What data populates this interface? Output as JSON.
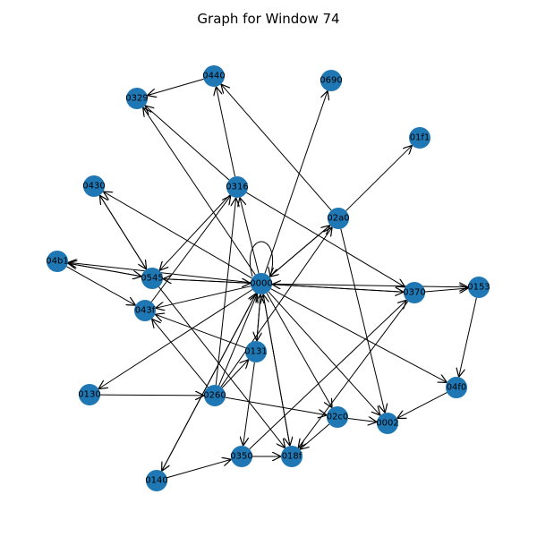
{
  "title": "Graph for Window 74",
  "style": {
    "node_color": "#1f77b4",
    "edge_color": "#000000",
    "label_color": "#000000"
  },
  "graph": {
    "directed": true,
    "nodes": [
      "0000",
      "0440",
      "0690",
      "0329",
      "01f1",
      "0430",
      "0316",
      "02a0",
      "04b1",
      "0545",
      "0153",
      "0370",
      "043f",
      "0131",
      "04f0",
      "0130",
      "0260",
      "02c0",
      "0002",
      "0140",
      "0350",
      "018f"
    ],
    "edges": [
      [
        "0000",
        "0000"
      ],
      [
        "0440",
        "0329"
      ],
      [
        "0000",
        "0329"
      ],
      [
        "0316",
        "0329"
      ],
      [
        "0316",
        "0440"
      ],
      [
        "0000",
        "0690"
      ],
      [
        "02a0",
        "01f1"
      ],
      [
        "02a0",
        "0440"
      ],
      [
        "0000",
        "0316"
      ],
      [
        "0000",
        "0430"
      ],
      [
        "0545",
        "0430"
      ],
      [
        "0430",
        "0545"
      ],
      [
        "0000",
        "04b1"
      ],
      [
        "0545",
        "04b1"
      ],
      [
        "04b1",
        "0545"
      ],
      [
        "04b1",
        "043f"
      ],
      [
        "0000",
        "0545"
      ],
      [
        "0545",
        "0000"
      ],
      [
        "0316",
        "0545"
      ],
      [
        "0000",
        "043f"
      ],
      [
        "0131",
        "043f"
      ],
      [
        "0316",
        "0370"
      ],
      [
        "0370",
        "0000"
      ],
      [
        "0000",
        "0370"
      ],
      [
        "0370",
        "0153"
      ],
      [
        "0000",
        "0153"
      ],
      [
        "0153",
        "04f0"
      ],
      [
        "04f0",
        "0002"
      ],
      [
        "0000",
        "04f0"
      ],
      [
        "0000",
        "0002"
      ],
      [
        "02a0",
        "0002"
      ],
      [
        "0000",
        "02a0"
      ],
      [
        "02a0",
        "0000"
      ],
      [
        "0000",
        "0131"
      ],
      [
        "0131",
        "0000"
      ],
      [
        "0000",
        "0130"
      ],
      [
        "0130",
        "0260"
      ],
      [
        "0260",
        "0000"
      ],
      [
        "0260",
        "0316"
      ],
      [
        "0260",
        "0131"
      ],
      [
        "0260",
        "02a0"
      ],
      [
        "0260",
        "02c0"
      ],
      [
        "02c0",
        "0002"
      ],
      [
        "0000",
        "02c0"
      ],
      [
        "0000",
        "0140"
      ],
      [
        "0140",
        "0000"
      ],
      [
        "0140",
        "0350"
      ],
      [
        "0131",
        "0350"
      ],
      [
        "0350",
        "018f"
      ],
      [
        "0350",
        "0370"
      ],
      [
        "02c0",
        "018f"
      ],
      [
        "0000",
        "018f"
      ],
      [
        "018f",
        "0000"
      ],
      [
        "0545",
        "018f"
      ],
      [
        "043f",
        "0316"
      ],
      [
        "0370",
        "018f"
      ],
      [
        "0260",
        "043f"
      ]
    ]
  }
}
